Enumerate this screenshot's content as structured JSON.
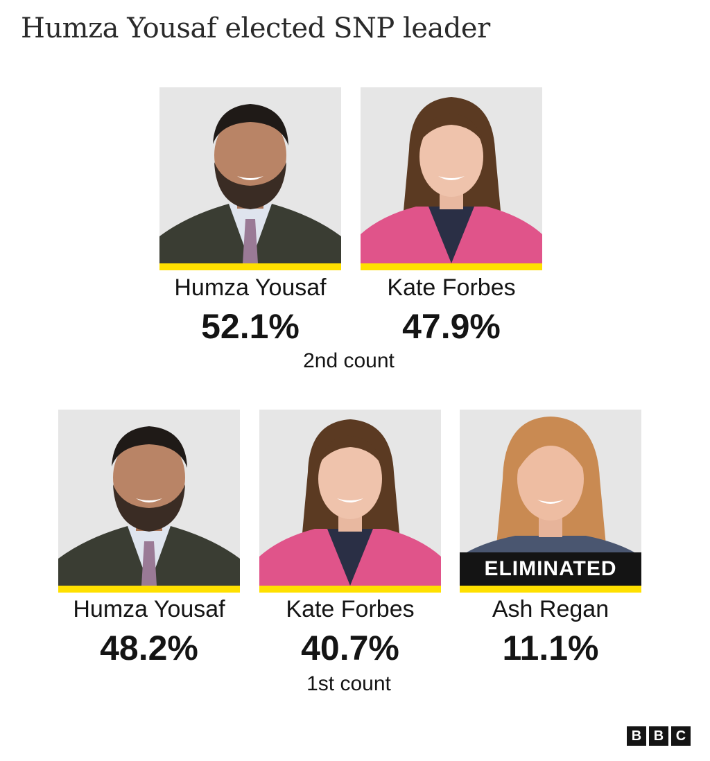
{
  "title": "Humza Yousaf elected SNP leader",
  "second_count": {
    "label": "2nd count",
    "candidates": [
      {
        "name": "Humza Yousaf",
        "percent": "52.1%"
      },
      {
        "name": "Kate Forbes",
        "percent": "47.9%"
      }
    ]
  },
  "first_count": {
    "label": "1st count",
    "candidates": [
      {
        "name": "Humza Yousaf",
        "percent": "48.2%"
      },
      {
        "name": "Kate Forbes",
        "percent": "40.7%"
      },
      {
        "name": "Ash Regan",
        "percent": "11.1%",
        "badge": "ELIMINATED"
      }
    ]
  },
  "logo": {
    "letters": [
      "B",
      "B",
      "C"
    ]
  },
  "colors": {
    "highlight_bar": "#ffe000",
    "photo_background": "#e6e6e6",
    "badge_background": "#141414",
    "text": "#141414"
  }
}
